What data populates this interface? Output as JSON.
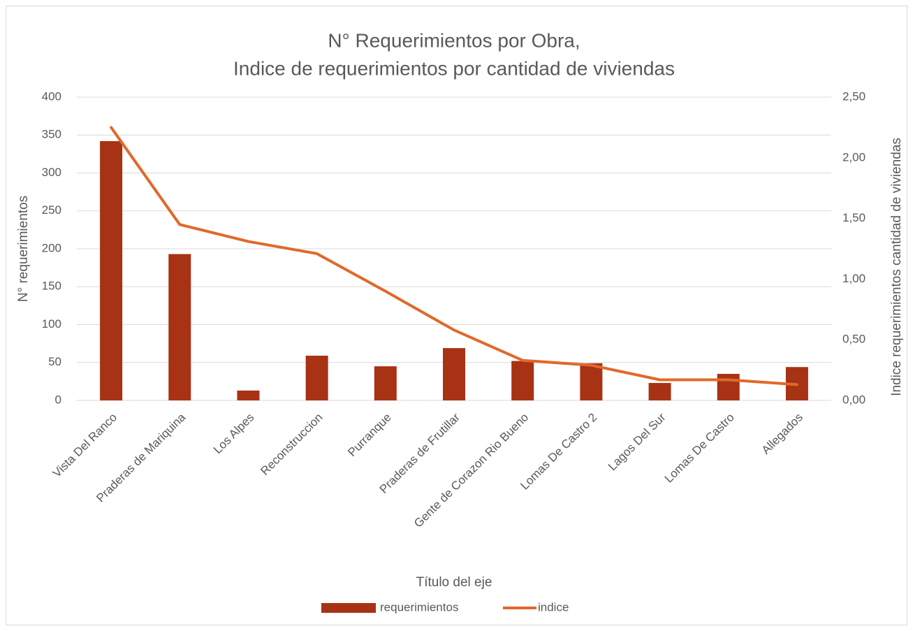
{
  "chart_data": {
    "type": "bar",
    "title": [
      "N° Requerimientos por Obra,",
      "Indice de requerimientos por cantidad de viviendas"
    ],
    "x_label": "Título del eje",
    "y_label": "N° requerimientos",
    "y2_label": "Indice requerimientos cantidad de viviendas",
    "categories": [
      "Vista Del Ranco",
      "Praderas de Mariquina",
      "Los Alpes",
      "Reconstruccion",
      "Purranque",
      "Praderas de Frutillar",
      "Gente de Corazon Rio Bueno",
      "Lomas De Castro 2",
      "Lagos Del Sur",
      "Lomas De Castro",
      "Allegados"
    ],
    "series": [
      {
        "name": "requerimientos",
        "type": "bar",
        "color": "#a83214",
        "values": [
          342,
          193,
          13,
          59,
          45,
          69,
          52,
          49,
          23,
          35,
          44
        ]
      },
      {
        "name": "indice",
        "type": "line",
        "axis": "y2",
        "color": "#e0692a",
        "values": [
          2.25,
          1.45,
          1.31,
          1.21,
          0.9,
          0.58,
          0.33,
          0.29,
          0.17,
          0.17,
          0.13
        ]
      }
    ],
    "ylim": [
      0,
      400
    ],
    "yticks": [
      0,
      50,
      100,
      150,
      200,
      250,
      300,
      350,
      400
    ],
    "y2lim": [
      0,
      2.5
    ],
    "y2ticks": [
      {
        "value": 0,
        "label": "0,00"
      },
      {
        "value": 0.5,
        "label": "0,50"
      },
      {
        "value": 1,
        "label": "1,00"
      },
      {
        "value": 1.5,
        "label": "1,50"
      },
      {
        "value": 2,
        "label": "2,00"
      },
      {
        "value": 2.5,
        "label": "2,50"
      }
    ],
    "grid": true,
    "legend": "bottom"
  }
}
